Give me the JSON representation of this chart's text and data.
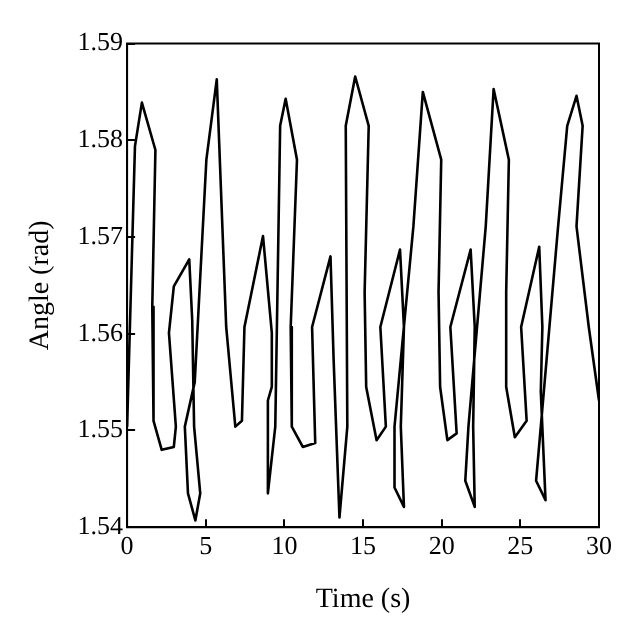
{
  "chart_data": {
    "type": "line",
    "xlabel": "Time (s)",
    "ylabel": "Angle (rad)",
    "xlim": [
      0,
      30
    ],
    "ylim": [
      1.54,
      1.59
    ],
    "xticks": [
      0,
      5,
      10,
      15,
      20,
      25,
      30
    ],
    "yticks": [
      1.54,
      1.55,
      1.56,
      1.57,
      1.58,
      1.59
    ],
    "grid": false,
    "legend": false,
    "marker": "none",
    "line_style": "solid",
    "series": [
      {
        "color": "#000000",
        "x": [
          0,
          0.5,
          0.94,
          1.8,
          1.6,
          1.68,
          2.2,
          2.97,
          3.1,
          2.66,
          2.97,
          3.95,
          4.14,
          4.26,
          4.65,
          4.34,
          3.87,
          3.67,
          4.3,
          5.04,
          5.7,
          6.3,
          6.88,
          7.3,
          7.46,
          8.64,
          9.2,
          9.2,
          8.95,
          8.95,
          9.42,
          9.73,
          10.08,
          10.8,
          10.4,
          10.47,
          11.17,
          11.96,
          11.76,
          12.93,
          13.13,
          13.5,
          14.0,
          13.9,
          14.5,
          15.36,
          15.1,
          15.2,
          15.86,
          16.45,
          16.1,
          17.35,
          17.6,
          17.4,
          17.6,
          17.0,
          17.0,
          18.2,
          18.8,
          19.97,
          19.8,
          19.9,
          20.36,
          20.95,
          20.55,
          21.84,
          22.1,
          22.0,
          22.1,
          21.5,
          21.7,
          22.8,
          23.3,
          24.27,
          24.1,
          24.1,
          24.65,
          25.4,
          25.05,
          26.2,
          26.4,
          26.3,
          26.6,
          26.0,
          26.3,
          27.4,
          27.98,
          28.57,
          28.96,
          28.57,
          29.35,
          30
        ],
        "values": [
          1.5504,
          1.5794,
          1.5839,
          1.579,
          1.5628,
          1.551,
          1.548,
          1.5483,
          1.5504,
          1.5601,
          1.5649,
          1.5677,
          1.5614,
          1.5504,
          1.5435,
          1.5407,
          1.5435,
          1.5504,
          1.555,
          1.578,
          1.5863,
          1.5607,
          1.5504,
          1.551,
          1.5607,
          1.5701,
          1.5601,
          1.5545,
          1.5531,
          1.5435,
          1.5504,
          1.5815,
          1.5843,
          1.578,
          1.5607,
          1.5504,
          1.5483,
          1.5487,
          1.5607,
          1.568,
          1.5573,
          1.541,
          1.5504,
          1.5815,
          1.5866,
          1.5815,
          1.5643,
          1.5545,
          1.549,
          1.5504,
          1.5607,
          1.5687,
          1.5607,
          1.5504,
          1.5421,
          1.5441,
          1.5504,
          1.5711,
          1.585,
          1.578,
          1.5643,
          1.5545,
          1.549,
          1.5497,
          1.5607,
          1.5687,
          1.5607,
          1.5504,
          1.5421,
          1.5448,
          1.5504,
          1.5711,
          1.5853,
          1.578,
          1.5643,
          1.5545,
          1.5493,
          1.551,
          1.5607,
          1.569,
          1.5607,
          1.554,
          1.5428,
          1.5448,
          1.5504,
          1.5711,
          1.5815,
          1.5846,
          1.5815,
          1.5711,
          1.5607,
          1.5531
        ]
      }
    ]
  }
}
